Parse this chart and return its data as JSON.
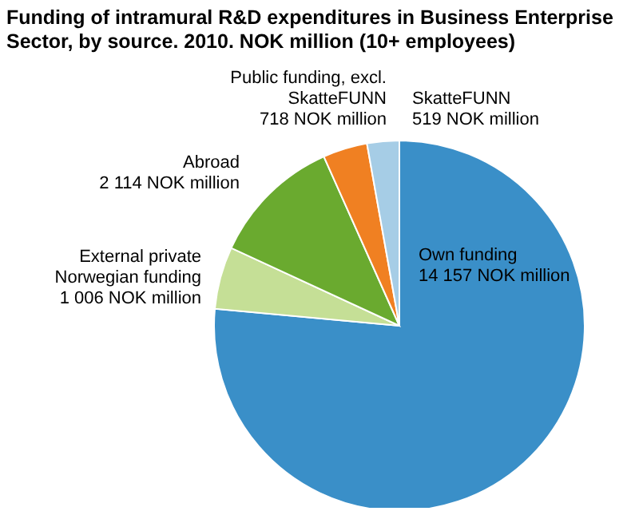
{
  "chart_data": {
    "type": "pie",
    "title": "Funding of intramural R&D expenditures in Business Enterprise Sector, by source. 2010. NOK million (10+ employees)",
    "categories": [
      "Own funding",
      "External private\nNorwegian funding",
      "Abroad",
      "Public funding, excl.\nSkatteFUNN",
      "SkatteFUNN"
    ],
    "values": [
      14157,
      1006,
      2114,
      718,
      519
    ],
    "value_labels": [
      "14 157 NOK million",
      "1 006 NOK million",
      "2 114 NOK million",
      "718 NOK million",
      "519 NOK million"
    ],
    "colors": [
      "#3a8fc8",
      "#c5df96",
      "#6aaa2f",
      "#f08022",
      "#a6cde6"
    ],
    "legend": false
  }
}
